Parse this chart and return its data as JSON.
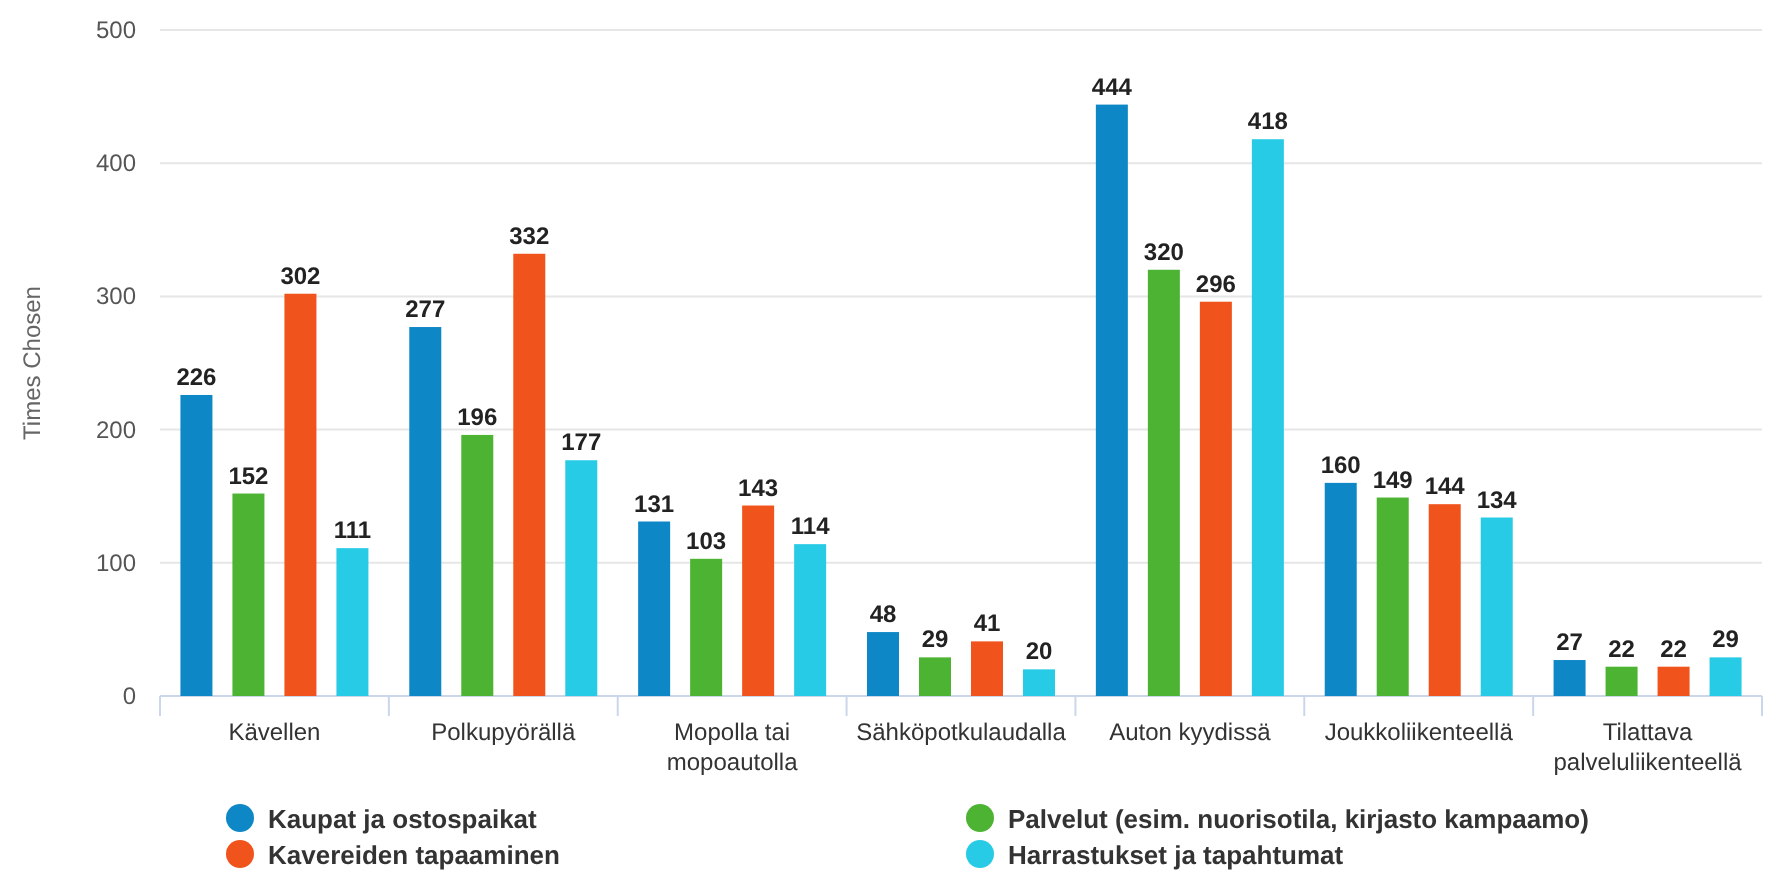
{
  "chart_data": {
    "type": "bar",
    "ylabel": "Times Chosen",
    "categories": [
      "Kävellen",
      "Polkupyörällä",
      "Mopolla tai mopoautolla",
      "Sähköpotkulaudalla",
      "Auton kyydissä",
      "Joukkoliikenteellä",
      "Tilattava palveluliikenteellä"
    ],
    "series": [
      {
        "name": "Kaupat ja ostospaikat",
        "color": "#0e87c6",
        "values": [
          226,
          277,
          131,
          48,
          444,
          160,
          27
        ]
      },
      {
        "name": "Palvelut (esim. nuorisotila, kirjasto kampaamo)",
        "color": "#4db332",
        "values": [
          152,
          196,
          103,
          29,
          320,
          149,
          22
        ]
      },
      {
        "name": "Kavereiden tapaaminen",
        "color": "#f0531c",
        "values": [
          302,
          332,
          143,
          41,
          296,
          144,
          22
        ]
      },
      {
        "name": "Harrastukset ja tapahtumat",
        "color": "#27cbe5",
        "values": [
          111,
          177,
          114,
          20,
          418,
          134,
          29
        ]
      }
    ],
    "ylim": [
      0,
      500
    ],
    "yticks": [
      0,
      100,
      200,
      300,
      400,
      500
    ],
    "grid": "y",
    "data_labels": true,
    "legend": "bottom"
  }
}
